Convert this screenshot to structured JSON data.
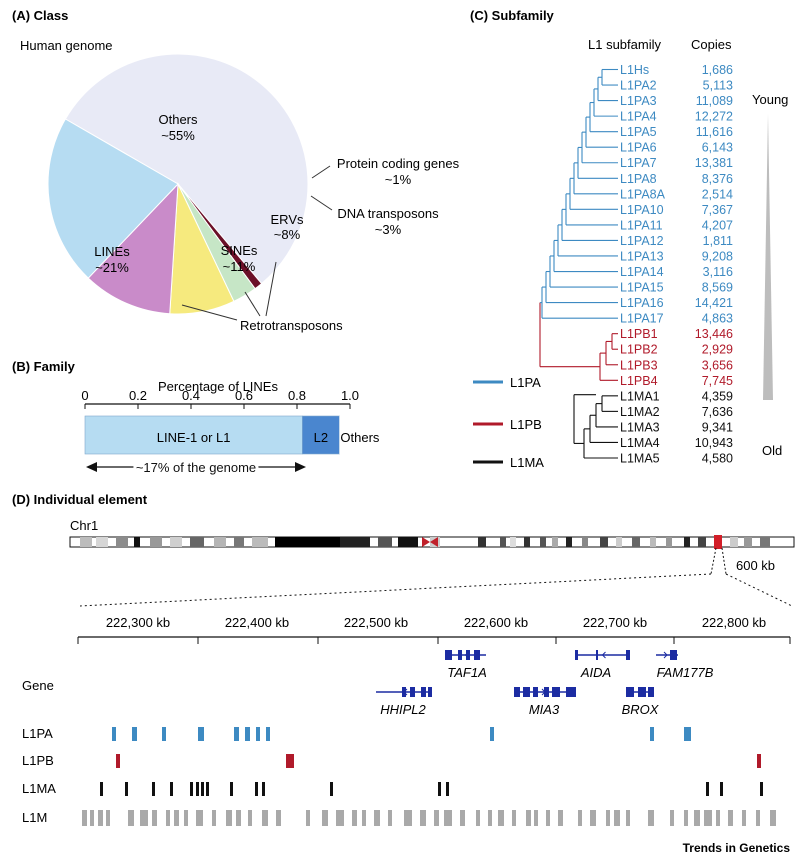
{
  "panel_a": {
    "heading": "(A)  Class",
    "subtitle": "Human genome",
    "slices": [
      {
        "name": "Others",
        "pct_label": "~55%",
        "value": 55,
        "color": "#e8eaf6"
      },
      {
        "name": "Protein coding genes",
        "pct_label": "~1%",
        "value": 1,
        "color": "#6b1028"
      },
      {
        "name": "DNA transposons",
        "pct_label": "~3%",
        "value": 3,
        "color": "#c6e6c6"
      },
      {
        "name": "ERVs",
        "pct_label": "~8%",
        "value": 8,
        "color": "#f6ea7e"
      },
      {
        "name": "SINEs",
        "pct_label": "~11%",
        "value": 11,
        "color": "#c98bc9"
      },
      {
        "name": "LINEs",
        "pct_label": "~21%",
        "value": 21,
        "color": "#b6dcf2"
      }
    ],
    "retro_label": "Retrotransposons"
  },
  "panel_b": {
    "heading": "(B)  Family",
    "axis_title": "Percentage of LINEs",
    "ticks": [
      "0",
      "0.2",
      "0.4",
      "0.6",
      "0.8",
      "1.0"
    ],
    "segments": [
      {
        "label": "LINE-1 or L1",
        "value": 0.82,
        "color": "#b6dcf2"
      },
      {
        "label": "L2",
        "value": 0.14,
        "color": "#4a86cf"
      },
      {
        "label": "Others",
        "value": 0.04,
        "color": "#ffffff"
      }
    ],
    "span_label": "~17% of the genome"
  },
  "panel_c": {
    "heading": "(C)  Subfamily",
    "col_subfamily": "L1 subfamily",
    "col_copies": "Copies",
    "young_label": "Young",
    "old_label": "Old",
    "legend": [
      {
        "label": "L1PA",
        "color": "#3d8ac2"
      },
      {
        "label": "L1PB",
        "color": "#b01a2a"
      },
      {
        "label": "L1MA",
        "color": "#111111"
      }
    ],
    "rows": [
      {
        "name": "L1Hs",
        "copies": "1,686",
        "group": "L1PA"
      },
      {
        "name": "L1PA2",
        "copies": "5,113",
        "group": "L1PA"
      },
      {
        "name": "L1PA3",
        "copies": "11,089",
        "group": "L1PA"
      },
      {
        "name": "L1PA4",
        "copies": "12,272",
        "group": "L1PA"
      },
      {
        "name": "L1PA5",
        "copies": "11,616",
        "group": "L1PA"
      },
      {
        "name": "L1PA6",
        "copies": "6,143",
        "group": "L1PA"
      },
      {
        "name": "L1PA7",
        "copies": "13,381",
        "group": "L1PA"
      },
      {
        "name": "L1PA8",
        "copies": "8,376",
        "group": "L1PA"
      },
      {
        "name": "L1PA8A",
        "copies": "2,514",
        "group": "L1PA"
      },
      {
        "name": "L1PA10",
        "copies": "7,367",
        "group": "L1PA"
      },
      {
        "name": "L1PA11",
        "copies": "4,207",
        "group": "L1PA"
      },
      {
        "name": "L1PA12",
        "copies": "1,811",
        "group": "L1PA"
      },
      {
        "name": "L1PA13",
        "copies": "9,208",
        "group": "L1PA"
      },
      {
        "name": "L1PA14",
        "copies": "3,116",
        "group": "L1PA"
      },
      {
        "name": "L1PA15",
        "copies": "8,569",
        "group": "L1PA"
      },
      {
        "name": "L1PA16",
        "copies": "14,421",
        "group": "L1PA"
      },
      {
        "name": "L1PA17",
        "copies": "4,863",
        "group": "L1PA"
      },
      {
        "name": "L1PB1",
        "copies": "13,446",
        "group": "L1PB"
      },
      {
        "name": "L1PB2",
        "copies": "2,929",
        "group": "L1PB"
      },
      {
        "name": "L1PB3",
        "copies": "3,656",
        "group": "L1PB"
      },
      {
        "name": "L1PB4",
        "copies": "7,745",
        "group": "L1PB"
      },
      {
        "name": "L1MA1",
        "copies": "4,359",
        "group": "L1MA"
      },
      {
        "name": "L1MA2",
        "copies": "7,636",
        "group": "L1MA"
      },
      {
        "name": "L1MA3",
        "copies": "9,341",
        "group": "L1MA"
      },
      {
        "name": "L1MA4",
        "copies": "10,943",
        "group": "L1MA"
      },
      {
        "name": "L1MA5",
        "copies": "4,580",
        "group": "L1MA"
      }
    ]
  },
  "panel_d": {
    "heading": "(D)  Individual element",
    "chrom_label": "Chr1",
    "zoom_label": "600 kb",
    "axis_ticks": [
      "222,300 kb",
      "222,400 kb",
      "222,500 kb",
      "222,600 kb",
      "222,700 kb",
      "222,800 kb"
    ],
    "track_gene": "Gene",
    "genes": [
      {
        "name": "TAF1A",
        "strand": "-"
      },
      {
        "name": "AIDA",
        "strand": "-"
      },
      {
        "name": "FAM177B",
        "strand": "+"
      },
      {
        "name": "HHIPL2",
        "strand": "-"
      },
      {
        "name": "MIA3",
        "strand": "+"
      },
      {
        "name": "BROX",
        "strand": "-"
      }
    ],
    "tracks": [
      {
        "label": "L1PA",
        "color": "#3d8ac2"
      },
      {
        "label": "L1PB",
        "color": "#b01a2a"
      },
      {
        "label": "L1MA",
        "color": "#111111"
      },
      {
        "label": "L1M",
        "color": "#a9a9a9"
      }
    ],
    "credit": "Trends in Genetics"
  }
}
